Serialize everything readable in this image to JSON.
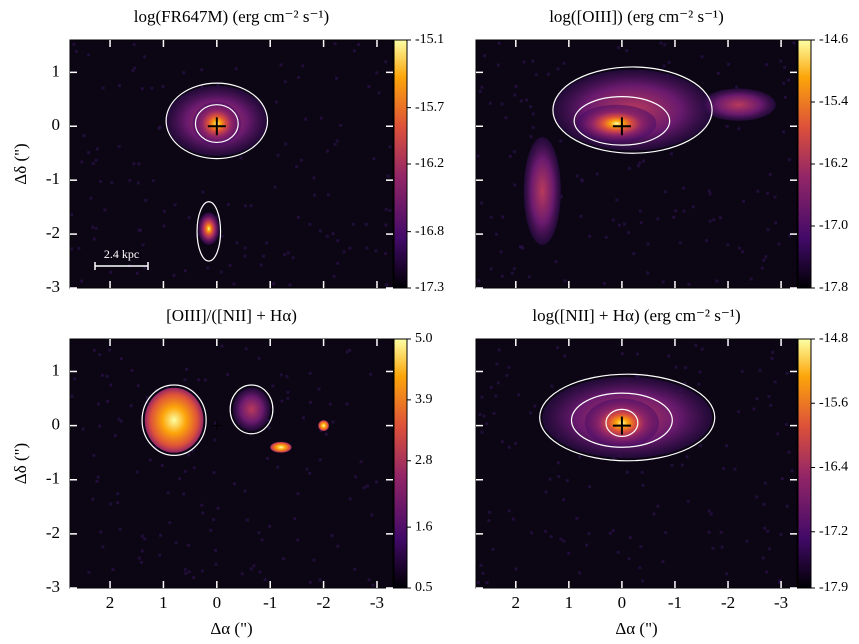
{
  "chart_data": [
    {
      "type": "image",
      "title": "log(FR647M) (erg cm⁻² s⁻¹)",
      "ylabel": "Δδ (\")",
      "xlim": [
        2.75,
        -3.3
      ],
      "ylim": [
        -3,
        1.6
      ],
      "xticks": [
        2,
        1,
        0,
        -1,
        -2,
        -3
      ],
      "yticks": [
        1,
        0,
        -1,
        -2,
        -3
      ],
      "show_xticklabels": false,
      "show_yticklabels": true,
      "scale_bar_label": "2.4 kpc",
      "colorbar": {
        "lim": [
          -17.3,
          -15.1
        ],
        "ticks": [
          -15.1,
          -15.7,
          -16.2,
          -16.8,
          -17.3
        ]
      },
      "colormap": "inferno"
    },
    {
      "type": "image",
      "title": "log([OIII]) (erg cm⁻² s⁻¹)",
      "xlim": [
        2.75,
        -3.3
      ],
      "ylim": [
        -3,
        1.6
      ],
      "xticks": [
        2,
        1,
        0,
        -1,
        -2,
        -3
      ],
      "yticks": [
        1,
        0,
        -1,
        -2,
        -3
      ],
      "show_xticklabels": false,
      "show_yticklabels": false,
      "colorbar": {
        "lim": [
          -17.8,
          -14.6
        ],
        "ticks": [
          -14.6,
          -15.4,
          -16.2,
          {
            "value": -17,
            "label": "-17.0"
          },
          -17.8
        ]
      },
      "colormap": "inferno"
    },
    {
      "type": "image",
      "title": "[OIII]/([NII] + Hα)",
      "xlabel": "Δα (\")",
      "ylabel": "Δδ (\")",
      "xlim": [
        2.75,
        -3.3
      ],
      "ylim": [
        -3,
        1.6
      ],
      "xticks": [
        2,
        1,
        0,
        -1,
        -2,
        -3
      ],
      "yticks": [
        1,
        0,
        -1,
        -2,
        -3
      ],
      "show_xticklabels": true,
      "show_yticklabels": true,
      "colorbar": {
        "lim": [
          0.5,
          5
        ],
        "ticks": [
          {
            "value": 5,
            "label": "5.0"
          },
          3.9,
          2.8,
          1.6,
          0.5
        ]
      },
      "colormap": "inferno"
    },
    {
      "type": "image",
      "title": "log([NII] + Hα) (erg cm⁻² s⁻¹)",
      "xlabel": "Δα (\")",
      "xlim": [
        2.75,
        -3.3
      ],
      "ylim": [
        -3,
        1.6
      ],
      "xticks": [
        2,
        1,
        0,
        -1,
        -2,
        -3
      ],
      "yticks": [
        1,
        0,
        -1,
        -2,
        -3
      ],
      "show_xticklabels": true,
      "show_yticklabels": false,
      "colorbar": {
        "lim": [
          -17.9,
          -14.8
        ],
        "ticks": [
          -14.8,
          -15.6,
          -16.4,
          -17.2,
          -17.9
        ]
      },
      "colormap": "inferno"
    }
  ]
}
